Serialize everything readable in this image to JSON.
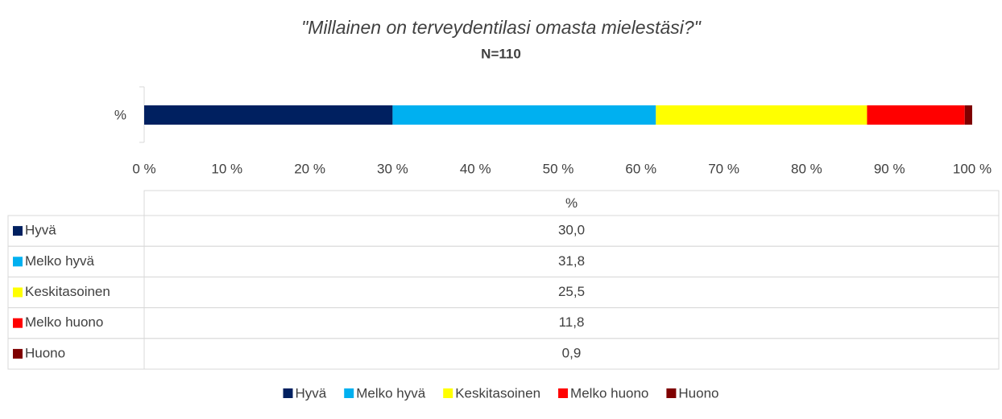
{
  "chart_data": {
    "type": "bar",
    "orientation": "horizontal",
    "stacked": true,
    "title": "\"Millainen on terveydentilasi omasta mielestäsi?\"",
    "subtitle": "N=110",
    "categories": [
      "%"
    ],
    "series": [
      {
        "name": "Hyvä",
        "color": "#002060",
        "values": [
          30.0
        ],
        "value_labels": [
          "30,0"
        ]
      },
      {
        "name": "Melko hyvä",
        "color": "#00b0f0",
        "values": [
          31.8
        ],
        "value_labels": [
          "31,8"
        ]
      },
      {
        "name": "Keskitasoinen",
        "color": "#ffff00",
        "values": [
          25.5
        ],
        "value_labels": [
          "25,5"
        ]
      },
      {
        "name": "Melko huono",
        "color": "#ff0000",
        "values": [
          11.8
        ],
        "value_labels": [
          "11,8"
        ]
      },
      {
        "name": "Huono",
        "color": "#7f0000",
        "values": [
          0.9
        ],
        "value_labels": [
          "0,9"
        ]
      }
    ],
    "xlim": [
      0,
      100
    ],
    "xticks": [
      {
        "value": 0,
        "label": "0 %"
      },
      {
        "value": 10,
        "label": "10 %"
      },
      {
        "value": 20,
        "label": "20 %"
      },
      {
        "value": 30,
        "label": "30 %"
      },
      {
        "value": 40,
        "label": "40 %"
      },
      {
        "value": 50,
        "label": "50 %"
      },
      {
        "value": 60,
        "label": "60 %"
      },
      {
        "value": 70,
        "label": "70 %"
      },
      {
        "value": 80,
        "label": "80 %"
      },
      {
        "value": 90,
        "label": "90 %"
      },
      {
        "value": 100,
        "label": "100 %"
      }
    ],
    "grid": false,
    "legend": "bottom",
    "data_table": true
  }
}
